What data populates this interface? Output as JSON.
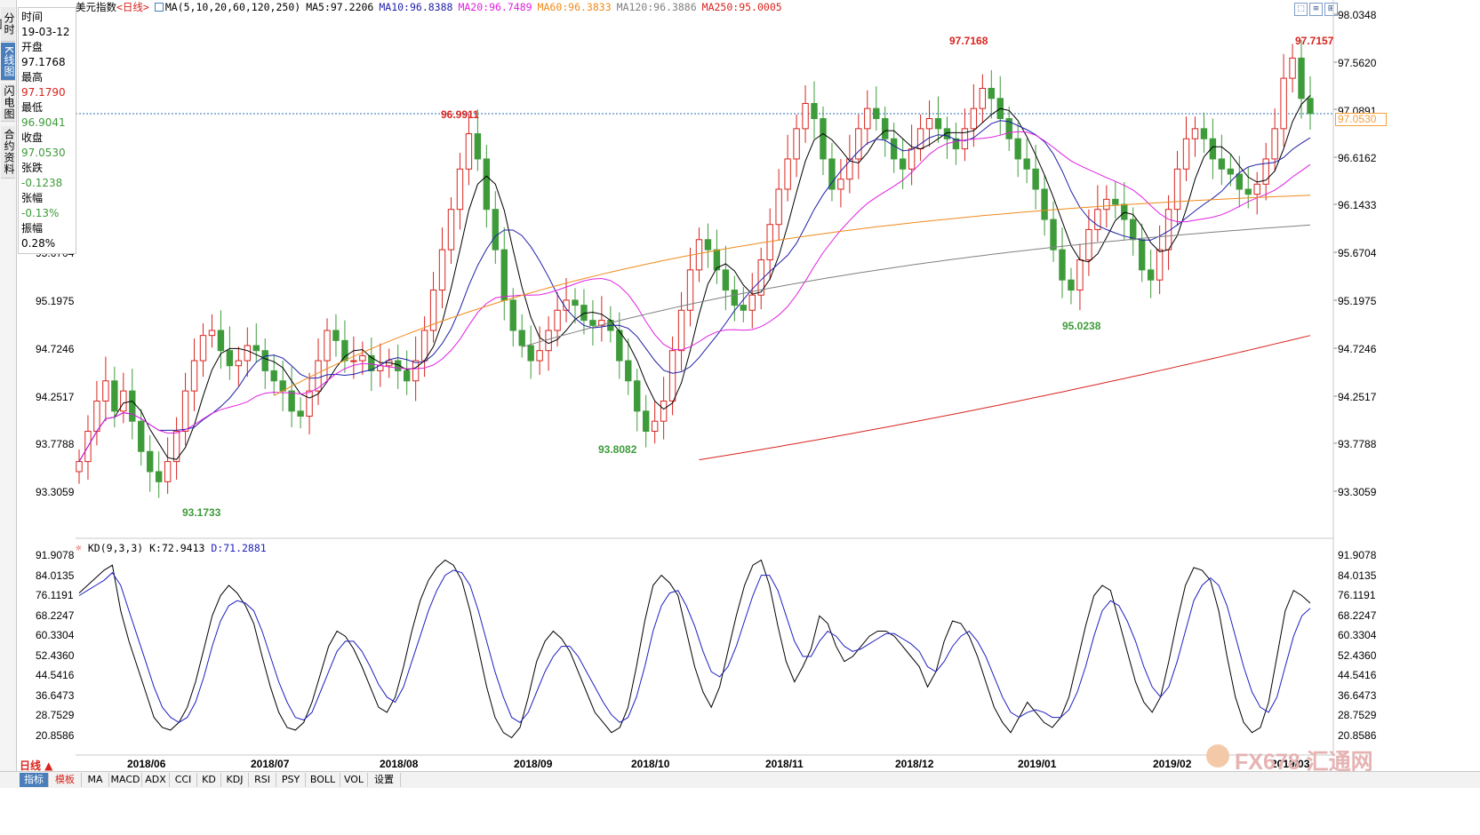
{
  "sidebar": {
    "tabs": [
      {
        "label": "分时图",
        "active": false
      },
      {
        "label": "K线图",
        "active": true
      },
      {
        "label": "闪电图",
        "active": false
      },
      {
        "label": "合约资料",
        "active": false
      }
    ]
  },
  "infobox": {
    "time_label": "时间",
    "time_value": "19-03-12",
    "open_label": "开盘",
    "open_value": "97.1768",
    "high_label": "最高",
    "high_value": "97.1790",
    "low_label": "最低",
    "low_value": "96.9041",
    "close_label": "收盘",
    "close_value": "97.0530",
    "change_label": "张跌",
    "change_value": "-0.1238",
    "pct_label": "张幅",
    "pct_value": "-0.13%",
    "amp_label": "振幅",
    "amp_value": "0.28%"
  },
  "header": {
    "title": "美元指数",
    "period": "<日线>",
    "ma_params": "MA(5,10,20,60,120,250)",
    "ma5": "MA5:97.2206",
    "ma10": "MA10:96.8388",
    "ma20": "MA20:96.7489",
    "ma60": "MA60:96.3833",
    "ma120": "MA120:96.3886",
    "ma250": "MA250:95.0005"
  },
  "window_buttons": [
    "⬚",
    "≡",
    "⊞"
  ],
  "price_axis": [
    "98.0348",
    "97.5620",
    "97.0891",
    "96.6162",
    "96.1433",
    "95.6704",
    "95.1975",
    "94.7246",
    "94.2517",
    "93.7788",
    "93.3059"
  ],
  "price_axis_left": [
    "95.6704",
    "95.1975",
    "94.7246",
    "94.2517",
    "93.7788",
    "93.3059"
  ],
  "current_price_tag": "97.0530",
  "annotations": {
    "high_aug": "96.9911",
    "high_dec": "97.7168",
    "high_mar": "97.7157",
    "low_jun": "93.1733",
    "low_sep": "93.8082",
    "low_jan": "95.0238"
  },
  "kd": {
    "params": "KD(9,3,3)",
    "k": "K:72.9413",
    "d": "D:71.2881",
    "axis": [
      "91.9078",
      "84.0135",
      "76.1191",
      "68.2247",
      "60.3304",
      "52.4360",
      "44.5416",
      "36.6473",
      "28.7529",
      "20.8586"
    ]
  },
  "dates": [
    "2018/06",
    "2018/07",
    "2018/08",
    "2018/09",
    "2018/10",
    "2018/11",
    "2018/12",
    "2019/01",
    "2019/02",
    "2019/03"
  ],
  "period_selector": "日线 ▲",
  "bottom_tabs": [
    "指标",
    "模板",
    "MA",
    "MACD",
    "ADX",
    "CCI",
    "KD",
    "KDJ",
    "RSI",
    "PSY",
    "BOLL",
    "VOL",
    "设置"
  ],
  "watermark": "FX678 汇通网",
  "colors": {
    "up": "#d8241e",
    "down": "#3e9b3a",
    "ma5": "#000000",
    "ma10": "#1f1fa8",
    "ma20": "#e020e0",
    "ma60": "#f08a1c",
    "ma120": "#808080",
    "ma250": "#d8241e",
    "k_line": "#000000",
    "d_line": "#2020c0"
  },
  "chart_data": {
    "type": "candlestick",
    "title": "美元指数",
    "ylim": [
      93.0,
      98.1
    ],
    "series": [
      {
        "name": "MA5",
        "values": []
      },
      {
        "name": "MA10",
        "values": []
      },
      {
        "name": "MA20",
        "values": []
      },
      {
        "name": "MA60",
        "values": []
      },
      {
        "name": "MA120",
        "values": []
      },
      {
        "name": "MA250",
        "values": []
      }
    ],
    "kd_series": [
      {
        "name": "K",
        "values": [
          77,
          80,
          83,
          86,
          88,
          70,
          58,
          48,
          38,
          28,
          24,
          23,
          26,
          32,
          42,
          55,
          68,
          76,
          80,
          77,
          72,
          65,
          52,
          40,
          30,
          24,
          23,
          26,
          34,
          45,
          56,
          62,
          60,
          55,
          48,
          40,
          32,
          30,
          36,
          48,
          62,
          74,
          82,
          87,
          90,
          88,
          82,
          70,
          55,
          40,
          28,
          22,
          20,
          24,
          36,
          50,
          58,
          62,
          59,
          54,
          46,
          38,
          30,
          26,
          22,
          24,
          32,
          48,
          66,
          80,
          84,
          81,
          76,
          62,
          48,
          38,
          32,
          40,
          54,
          68,
          80,
          88,
          90,
          80,
          64,
          50,
          42,
          48,
          55,
          68,
          65,
          56,
          50,
          52,
          56,
          60,
          62,
          62,
          60,
          56,
          52,
          48,
          40,
          46,
          58,
          66,
          65,
          60,
          52,
          42,
          32,
          26,
          22,
          28,
          34,
          30,
          26,
          24,
          28,
          36,
          50,
          64,
          76,
          80,
          78,
          66,
          54,
          42,
          34,
          30,
          36,
          50,
          66,
          80,
          87,
          86,
          82,
          70,
          52,
          36,
          26,
          22,
          24,
          34,
          52,
          70,
          78,
          76,
          73
        ]
      },
      {
        "name": "D",
        "values": [
          76,
          78,
          80,
          82,
          85,
          80,
          70,
          60,
          50,
          40,
          32,
          28,
          26,
          28,
          34,
          44,
          56,
          66,
          72,
          74,
          73,
          70,
          62,
          52,
          42,
          34,
          28,
          27,
          30,
          38,
          46,
          54,
          58,
          58,
          54,
          48,
          41,
          36,
          34,
          40,
          50,
          60,
          70,
          78,
          84,
          86,
          85,
          80,
          70,
          58,
          46,
          36,
          28,
          26,
          30,
          38,
          46,
          52,
          56,
          56,
          52,
          46,
          40,
          34,
          29,
          26,
          28,
          36,
          48,
          62,
          72,
          77,
          78,
          72,
          64,
          54,
          46,
          44,
          48,
          56,
          66,
          76,
          84,
          84,
          78,
          68,
          58,
          52,
          52,
          58,
          62,
          60,
          56,
          54,
          55,
          57,
          59,
          61,
          61,
          59,
          57,
          54,
          48,
          46,
          50,
          56,
          60,
          62,
          58,
          52,
          44,
          36,
          30,
          28,
          30,
          31,
          30,
          28,
          28,
          31,
          38,
          48,
          60,
          70,
          74,
          72,
          66,
          58,
          48,
          40,
          36,
          40,
          50,
          62,
          74,
          80,
          83,
          80,
          72,
          60,
          48,
          38,
          32,
          30,
          36,
          48,
          60,
          68,
          71
        ]
      }
    ]
  }
}
